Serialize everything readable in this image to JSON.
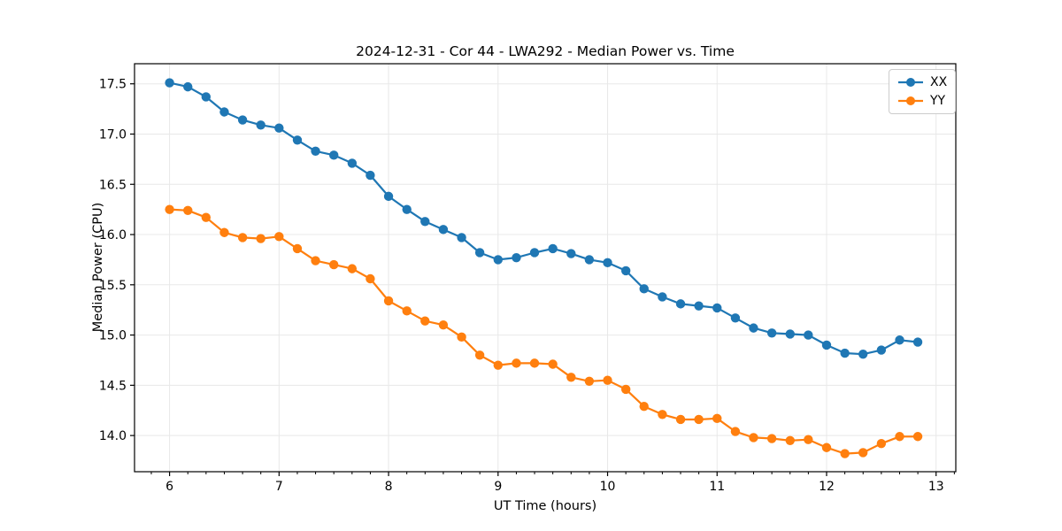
{
  "chart_data": {
    "type": "line",
    "title": "2024-12-31 - Cor 44 - LWA292 - Median Power vs. Time",
    "xlabel": "UT Time (hours)",
    "ylabel": "Median Power (CPU)",
    "xlim": [
      5.68,
      13.18
    ],
    "ylim": [
      13.64,
      17.7
    ],
    "xticks": [
      6,
      7,
      8,
      9,
      10,
      11,
      12,
      13
    ],
    "yticks": [
      14.0,
      14.5,
      15.0,
      15.5,
      16.0,
      16.5,
      17.0,
      17.5
    ],
    "x_minor_tick_step": 0.166667,
    "grid": true,
    "grid_color": "#e8e8e8",
    "spine_color": "#000000",
    "legend_position": "upper right",
    "x": [
      6.0,
      6.167,
      6.333,
      6.5,
      6.667,
      6.833,
      7.0,
      7.167,
      7.333,
      7.5,
      7.667,
      7.833,
      8.0,
      8.167,
      8.333,
      8.5,
      8.667,
      8.833,
      9.0,
      9.167,
      9.333,
      9.5,
      9.667,
      9.833,
      10.0,
      10.167,
      10.333,
      10.5,
      10.667,
      10.833,
      11.0,
      11.167,
      11.333,
      11.5,
      11.667,
      11.833,
      12.0,
      12.167,
      12.333,
      12.5,
      12.667,
      12.833
    ],
    "series": [
      {
        "name": "XX",
        "color": "#1f77b4",
        "values": [
          17.51,
          17.47,
          17.37,
          17.22,
          17.14,
          17.09,
          17.06,
          16.94,
          16.83,
          16.79,
          16.71,
          16.59,
          16.38,
          16.25,
          16.13,
          16.05,
          15.97,
          15.82,
          15.75,
          15.77,
          15.82,
          15.86,
          15.81,
          15.75,
          15.72,
          15.64,
          15.46,
          15.38,
          15.31,
          15.29,
          15.27,
          15.17,
          15.07,
          15.02,
          15.01,
          15.0,
          14.9,
          14.82,
          14.81,
          14.85,
          14.95,
          14.93
        ]
      },
      {
        "name": "YY",
        "color": "#ff7f0e",
        "values": [
          16.25,
          16.24,
          16.17,
          16.02,
          15.97,
          15.96,
          15.98,
          15.86,
          15.74,
          15.7,
          15.66,
          15.56,
          15.34,
          15.24,
          15.14,
          15.1,
          14.98,
          14.8,
          14.7,
          14.72,
          14.72,
          14.71,
          14.58,
          14.54,
          14.55,
          14.46,
          14.29,
          14.21,
          14.16,
          14.16,
          14.17,
          14.04,
          13.98,
          13.97,
          13.95,
          13.96,
          13.88,
          13.82,
          13.83,
          13.92,
          13.99,
          13.99
        ]
      }
    ]
  }
}
